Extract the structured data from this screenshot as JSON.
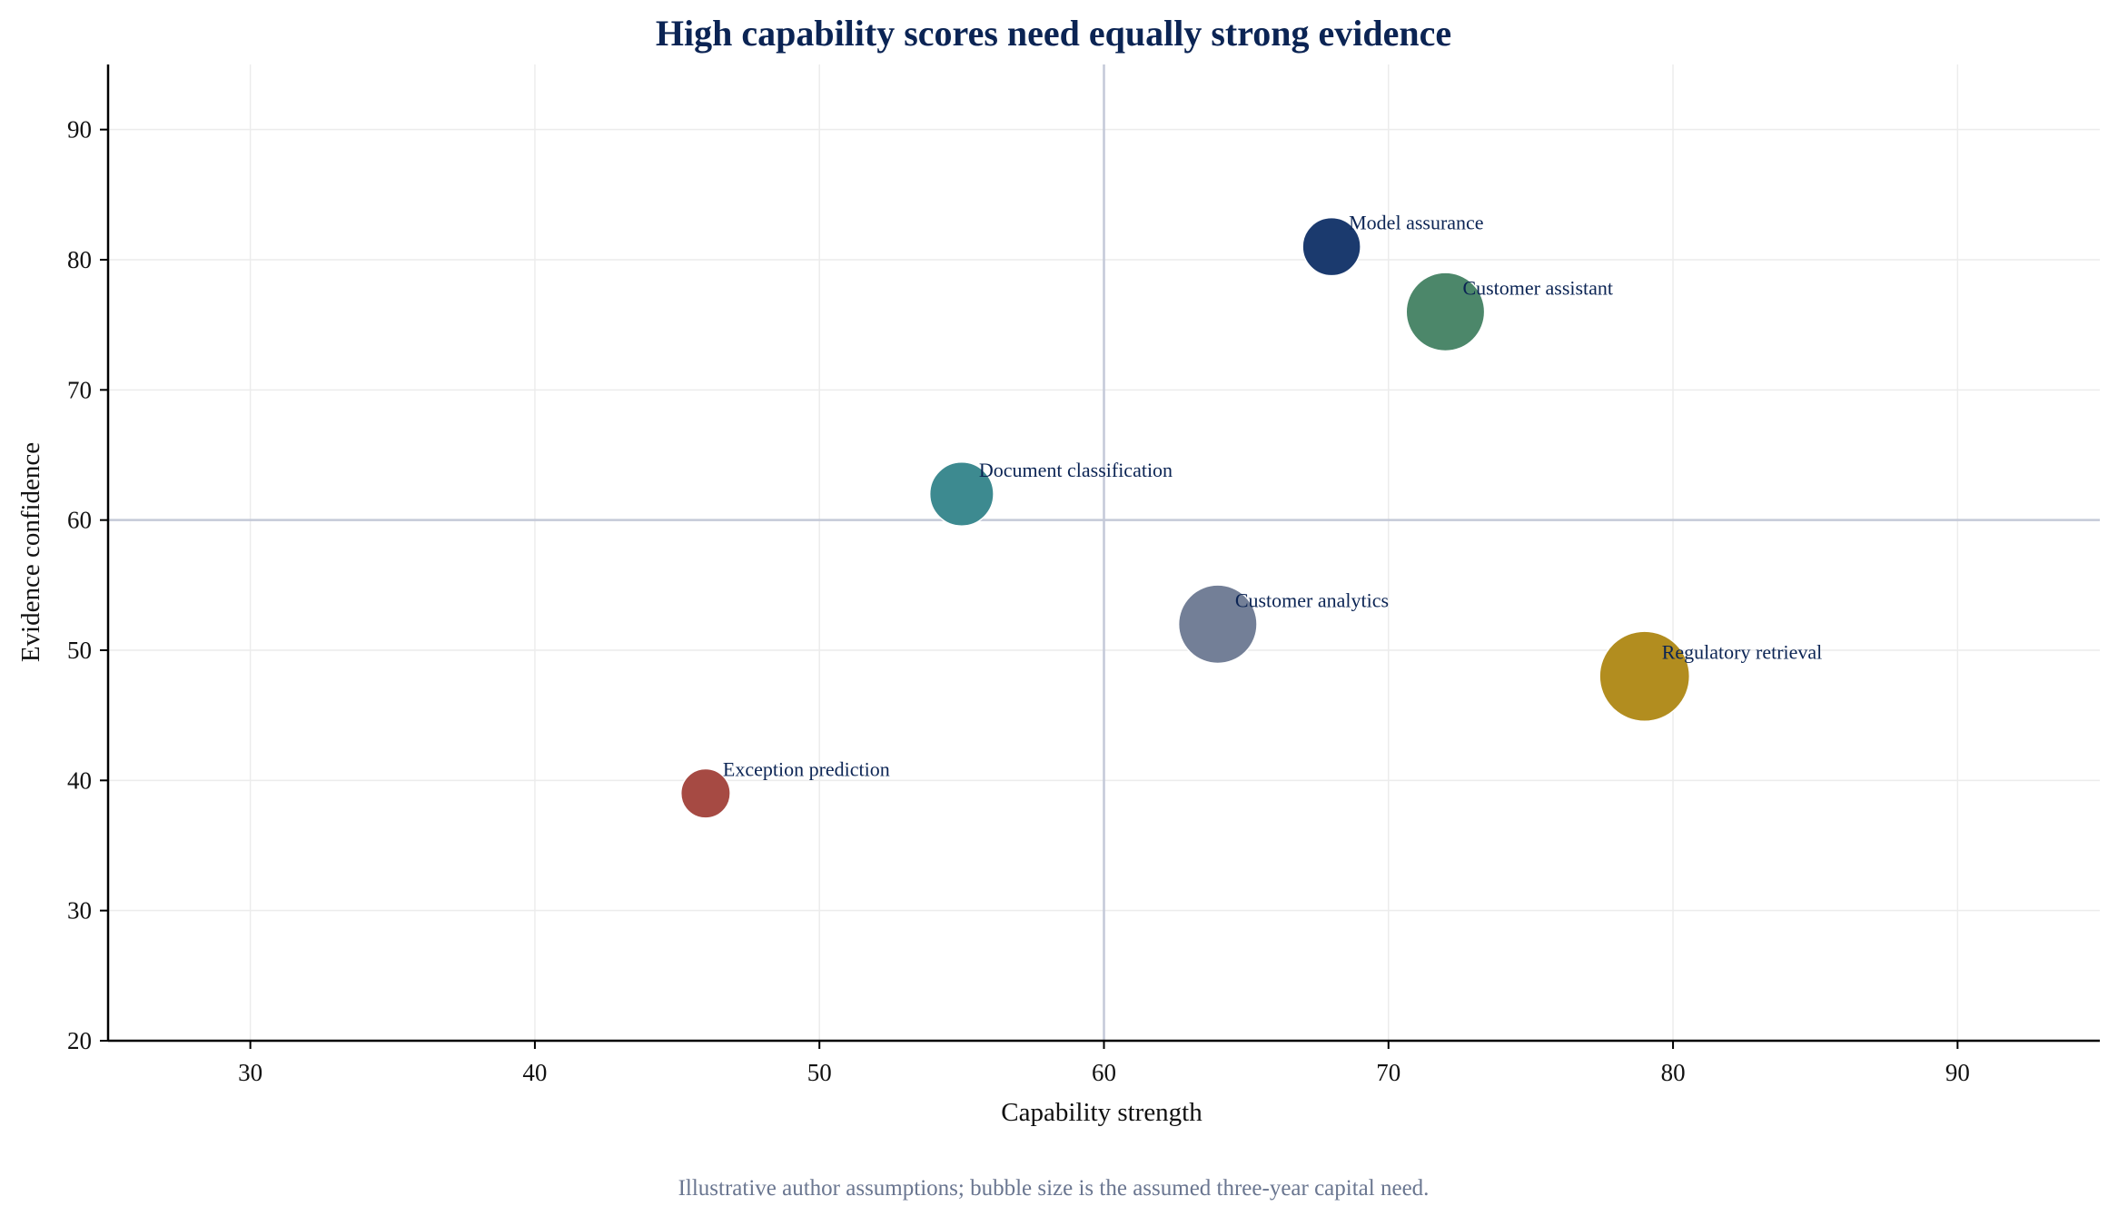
{
  "chart_data": {
    "type": "scatter",
    "title": "High capability scores need equally strong evidence",
    "xlabel": "Capability strength",
    "ylabel": "Evidence confidence",
    "xlim": [
      25,
      95
    ],
    "ylim": [
      20,
      95
    ],
    "xticks": [
      30,
      40,
      50,
      60,
      70,
      80,
      90
    ],
    "yticks": [
      20,
      30,
      40,
      50,
      60,
      70,
      80,
      90
    ],
    "grid": true,
    "reference_lines": {
      "x": 60,
      "y": 60
    },
    "points": [
      {
        "label": "Model assurance",
        "x": 68,
        "y": 81,
        "size": 20,
        "color": "#1b3a6e"
      },
      {
        "label": "Customer assistant",
        "x": 72,
        "y": 76,
        "size": 27,
        "color": "#4c876a"
      },
      {
        "label": "Document classification",
        "x": 55,
        "y": 62,
        "size": 22,
        "color": "#3d8a90"
      },
      {
        "label": "Customer analytics",
        "x": 64,
        "y": 52,
        "size": 27,
        "color": "#737f97"
      },
      {
        "label": "Regulatory retrieval",
        "x": 79,
        "y": 48,
        "size": 31,
        "color": "#b28d1f"
      },
      {
        "label": "Exception prediction",
        "x": 46,
        "y": 39,
        "size": 17,
        "color": "#a64a43"
      }
    ],
    "footnote": "Illustrative author assumptions; bubble size is the assumed three-year capital need."
  }
}
